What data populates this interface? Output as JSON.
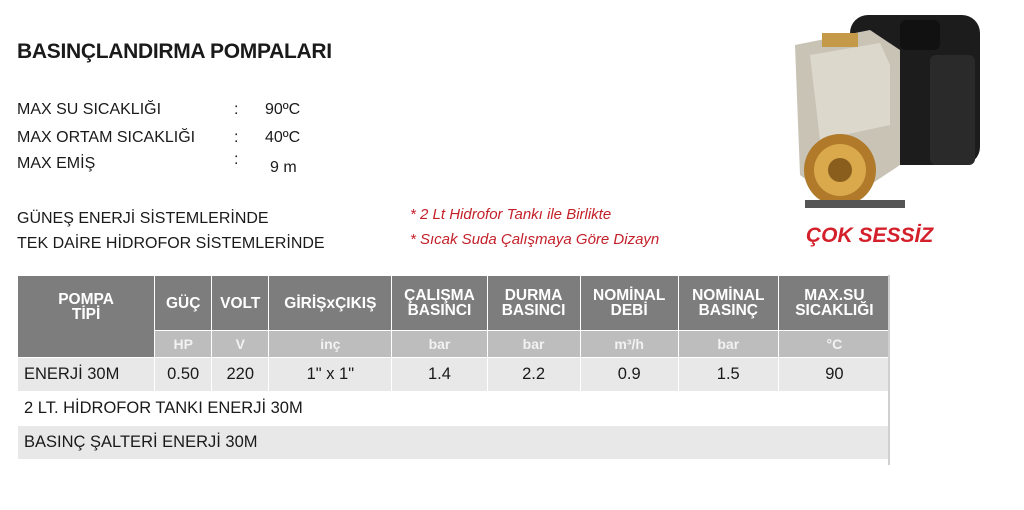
{
  "title": "BASINÇLANDIRMA POMPALARI",
  "specs": [
    {
      "label": "MAX SU SICAKLIĞI",
      "sep": ":",
      "value": "90ºC"
    },
    {
      "label": "MAX ORTAM SICAKLIĞI",
      "sep": ":",
      "value": "40ºC"
    },
    {
      "label": "MAX EMİŞ",
      "sep": ":",
      "value": "9 m"
    }
  ],
  "systems": [
    "GÜNEŞ ENERJİ SİSTEMLERİNDE",
    "TEK DAİRE HİDROFOR SİSTEMLERİNDE"
  ],
  "notes": [
    "* 2 Lt Hidrofor Tankı ile Birlikte",
    "* Sıcak Suda Çalışmaya Göre Dizayn"
  ],
  "badge": "ÇOK SESSİZ",
  "colors": {
    "accent_red": "#d4202a",
    "header_grey": "#7d7d7d",
    "unit_grey": "#bdbdbd",
    "row_grey": "#e8e8e8"
  },
  "table": {
    "first_header": "POMPA TİPİ",
    "columns": [
      {
        "header": "GÜÇ",
        "unit": "HP"
      },
      {
        "header": "VOLT",
        "unit": "V"
      },
      {
        "header": "GİRİŞxÇIKIŞ",
        "unit": "inç"
      },
      {
        "header": "ÇALIŞMA BASINCI",
        "unit": "bar"
      },
      {
        "header": "DURMA BASINCI",
        "unit": "bar"
      },
      {
        "header": "NOMİNAL DEBİ",
        "unit": "m³/h"
      },
      {
        "header": "NOMİNAL BASINÇ",
        "unit": "bar"
      },
      {
        "header": "MAX.SU SICAKLIĞI",
        "unit": "°C"
      }
    ],
    "row": {
      "name": "ENERJİ 30M",
      "values": [
        "0.50",
        "220",
        "1\" x 1\"",
        "1.4",
        "2.2",
        "0.9",
        "1.5",
        "90"
      ]
    },
    "extra_rows": [
      "2 LT. HİDROFOR TANKI ENERJİ 30M",
      "BASINÇ ŞALTERİ ENERJİ 30M"
    ]
  }
}
